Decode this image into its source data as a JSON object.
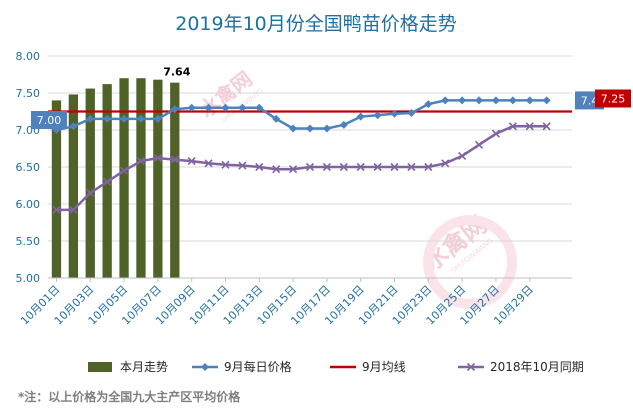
{
  "chart_data": {
    "type": "bar",
    "title": "2019年10月份全国鸭苗价格走势",
    "x_ticks": [
      "10月01日",
      "10月03日",
      "10月05日",
      "10月07日",
      "10月09日",
      "10月11日",
      "10月13日",
      "10月15日",
      "10月17日",
      "10月19日",
      "10月21日",
      "10月23日",
      "10月25日",
      "10月27日",
      "10月29日"
    ],
    "ylim": [
      5.0,
      8.0
    ],
    "yticks": [
      "5.00",
      "5.50",
      "6.00",
      "6.50",
      "7.00",
      "7.50",
      "8.00"
    ],
    "grid": true,
    "legend_position": "bottom",
    "series": [
      {
        "name": "本月走势",
        "type": "bar",
        "color": "#4f6228",
        "x": [
          "10月01日",
          "10月02日",
          "10月03日",
          "10月04日",
          "10月05日",
          "10月06日",
          "10月07日",
          "10月08日"
        ],
        "values": [
          7.4,
          7.48,
          7.56,
          7.62,
          7.7,
          7.7,
          7.68,
          7.64
        ],
        "data_labels": {
          "10月08日": "7.64"
        }
      },
      {
        "name": "9月每日价格",
        "type": "line",
        "marker": "diamond",
        "color": "#4f81bd",
        "x": [
          "10月01日",
          "10月02日",
          "10月03日",
          "10月04日",
          "10月05日",
          "10月06日",
          "10月07日",
          "10月08日",
          "10月09日",
          "10月10日",
          "10月11日",
          "10月12日",
          "10月13日",
          "10月14日",
          "10月15日",
          "10月16日",
          "10月17日",
          "10月18日",
          "10月19日",
          "10月20日",
          "10月21日",
          "10月22日",
          "10月23日",
          "10月24日",
          "10月25日",
          "10月26日",
          "10月27日",
          "10月28日",
          "10月29日",
          "10月30日"
        ],
        "values": [
          7.0,
          7.05,
          7.15,
          7.15,
          7.15,
          7.15,
          7.15,
          7.28,
          7.3,
          7.3,
          7.3,
          7.3,
          7.3,
          7.15,
          7.02,
          7.02,
          7.02,
          7.07,
          7.18,
          7.2,
          7.22,
          7.23,
          7.35,
          7.4,
          7.4,
          7.4,
          7.4,
          7.4,
          7.4,
          7.4
        ],
        "start_label": "7.00",
        "end_label": "7.4"
      },
      {
        "name": "9月均线",
        "type": "line",
        "color": "#c00000",
        "value": 7.25,
        "end_label": "7.25"
      },
      {
        "name": "2018年10月同期",
        "type": "line",
        "marker": "x",
        "color": "#8064a2",
        "x": [
          "10月01日",
          "10月02日",
          "10月03日",
          "10月04日",
          "10月05日",
          "10月06日",
          "10月07日",
          "10月08日",
          "10月09日",
          "10月10日",
          "10月11日",
          "10月12日",
          "10月13日",
          "10月14日",
          "10月15日",
          "10月16日",
          "10月17日",
          "10月18日",
          "10月19日",
          "10月20日",
          "10月21日",
          "10月22日",
          "10月23日",
          "10月24日",
          "10月25日",
          "10月26日",
          "10月27日",
          "10月28日",
          "10月29日",
          "10月30日"
        ],
        "values": [
          5.92,
          5.92,
          6.15,
          6.3,
          6.45,
          6.58,
          6.62,
          6.6,
          6.58,
          6.55,
          6.53,
          6.52,
          6.5,
          6.47,
          6.47,
          6.5,
          6.5,
          6.5,
          6.5,
          6.5,
          6.5,
          6.5,
          6.5,
          6.55,
          6.65,
          6.8,
          6.95,
          7.05,
          7.05,
          7.05
        ]
      }
    ],
    "footnote": "*注：以上价格为全国九大主产区平均价格",
    "watermark": {
      "text": "水禽网",
      "subtext": "SHUIQINWANG"
    }
  }
}
